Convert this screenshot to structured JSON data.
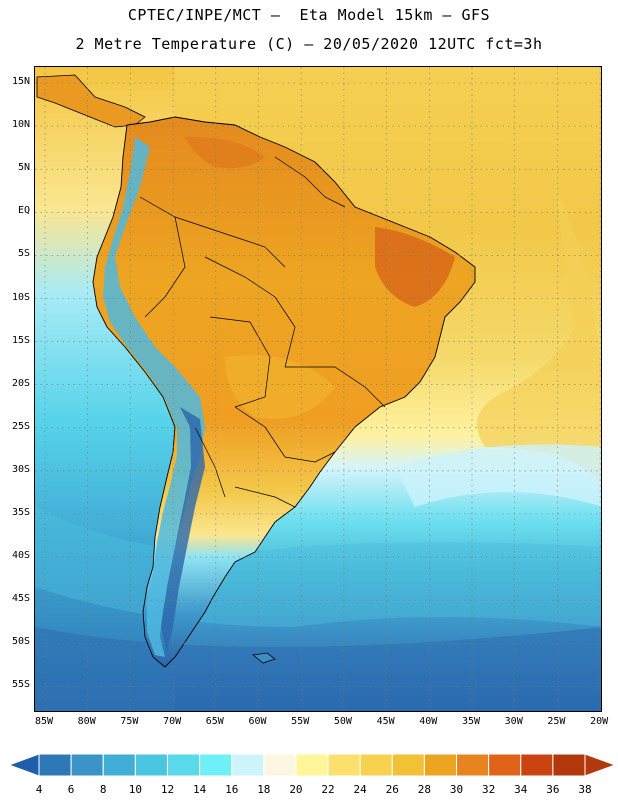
{
  "header": {
    "line1": "CPTEC/INPE/MCT –  Eta Model 15km – GFS",
    "line2": "2 Metre Temperature (C) – 20/05/2020 12UTC fct=3h"
  },
  "map": {
    "lat_labels": [
      "15N",
      "10N",
      "5N",
      "EQ",
      "5S",
      "10S",
      "15S",
      "20S",
      "25S",
      "30S",
      "35S",
      "40S",
      "45S",
      "50S",
      "55S"
    ],
    "lon_labels": [
      "85W",
      "80W",
      "75W",
      "70W",
      "65W",
      "60W",
      "55W",
      "50W",
      "45W",
      "40W",
      "35W",
      "30W",
      "25W",
      "20W"
    ]
  },
  "colorbar": {
    "ticks": [
      "4",
      "6",
      "8",
      "10",
      "12",
      "14",
      "16",
      "18",
      "20",
      "22",
      "24",
      "26",
      "28",
      "30",
      "32",
      "34",
      "36",
      "38"
    ],
    "colors": [
      "#1f5ea8",
      "#2e78b8",
      "#3a94c8",
      "#41aed6",
      "#4bc6e0",
      "#5ad9ea",
      "#6ff0f7",
      "#cdf3fb",
      "#fdf7e2",
      "#fff59a",
      "#fbe06e",
      "#f6d24e",
      "#f1c235",
      "#eba320",
      "#e88420",
      "#e0631a",
      "#c94410",
      "#b3380c"
    ]
  }
}
